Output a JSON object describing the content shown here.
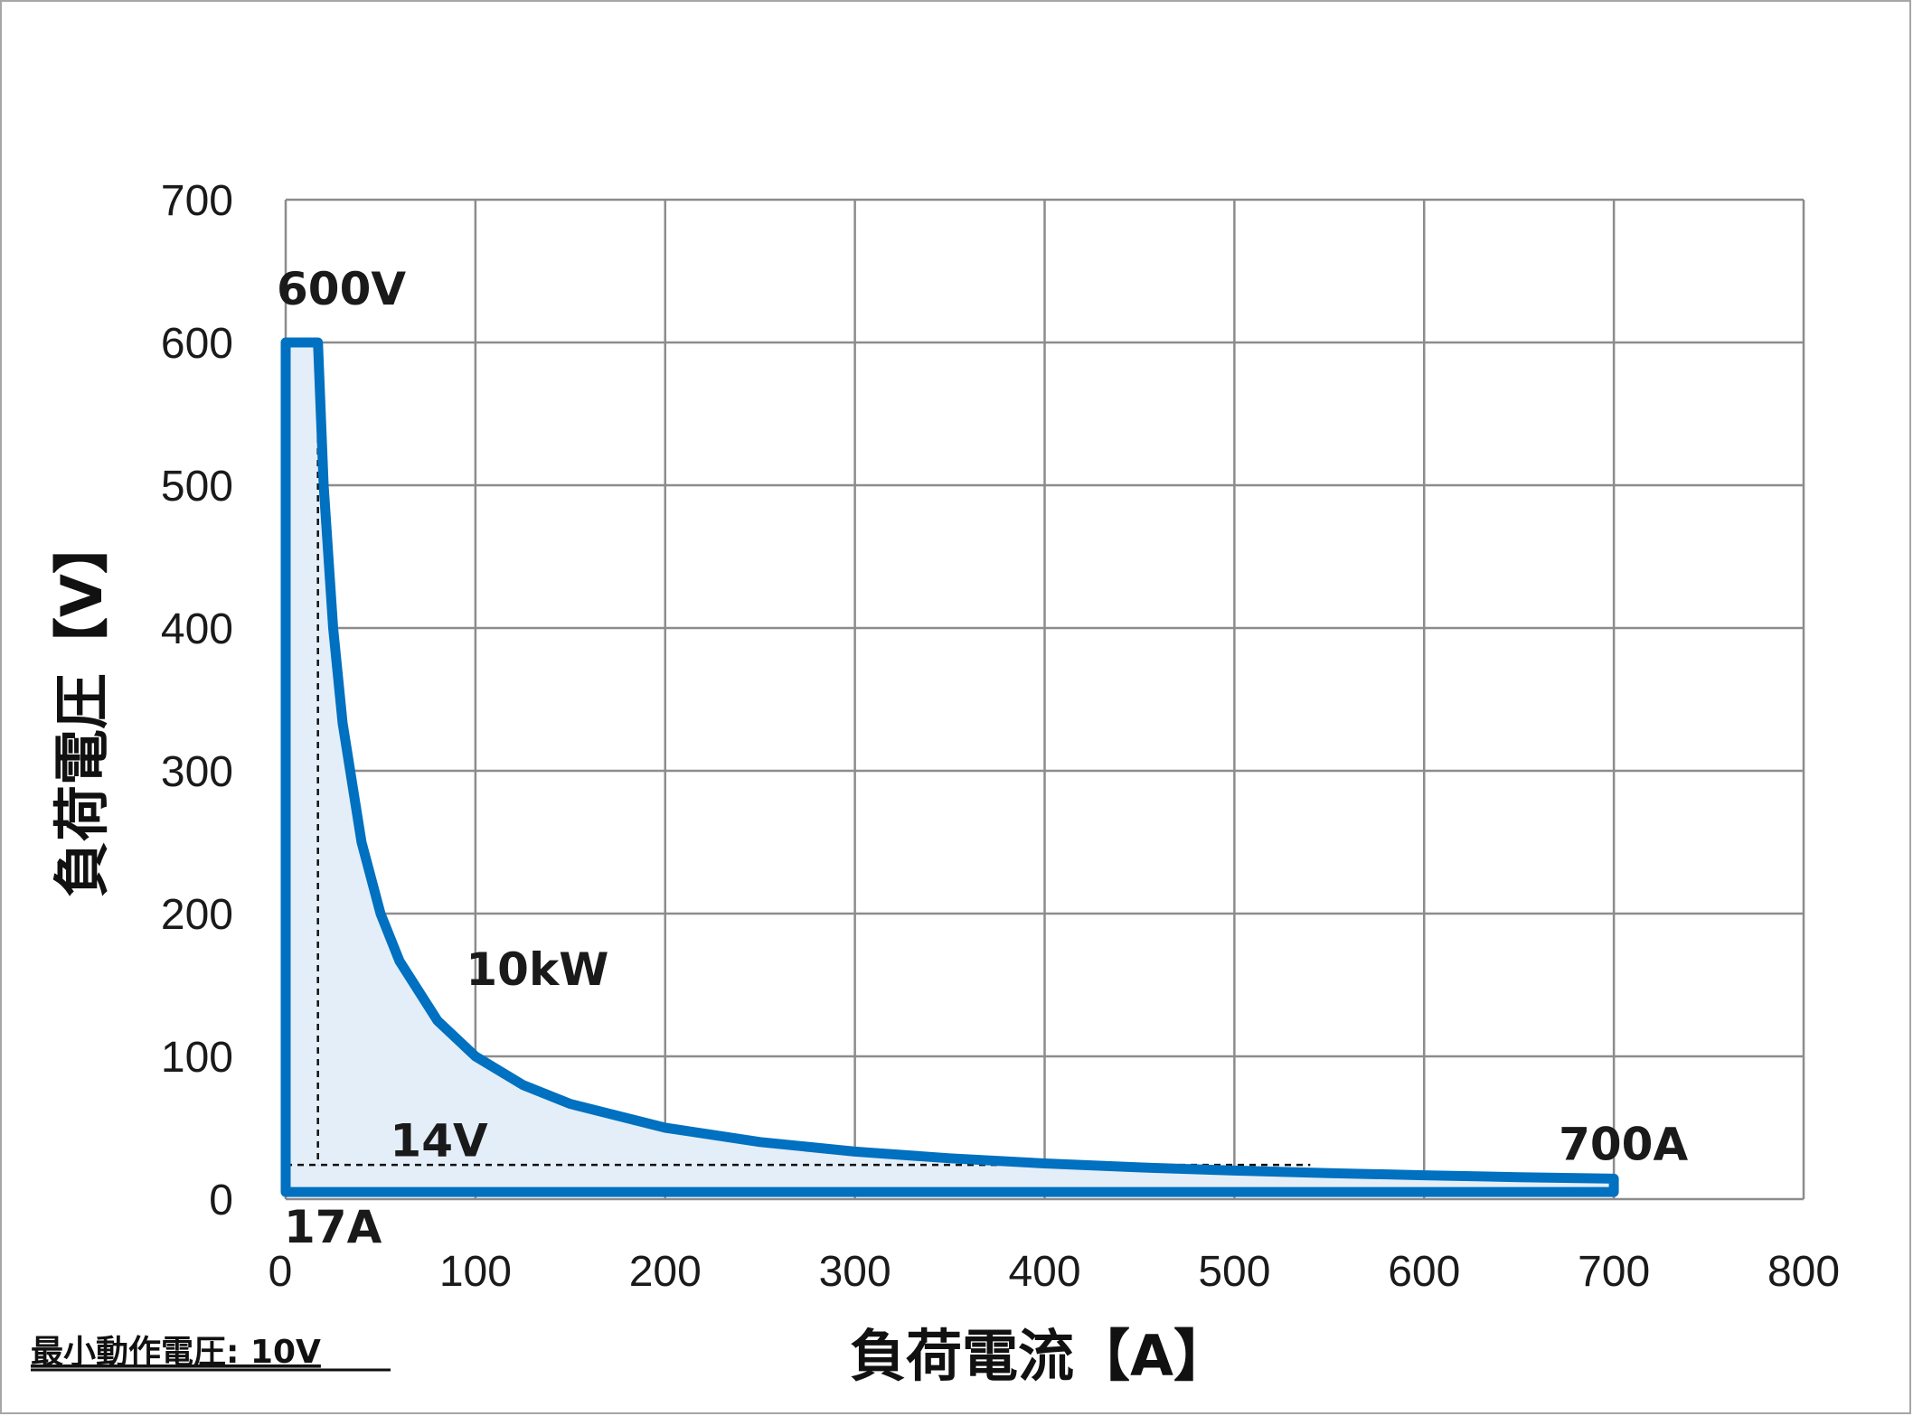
{
  "chart_data": {
    "type": "line",
    "title": "",
    "xlabel": "負荷電流【A】",
    "ylabel": "負荷電圧【V】",
    "xlim": [
      0,
      800
    ],
    "ylim": [
      0,
      700
    ],
    "x_ticks": [
      "0",
      "100",
      "200",
      "300",
      "400",
      "500",
      "600",
      "700",
      "800"
    ],
    "y_ticks": [
      "0",
      "100",
      "200",
      "300",
      "400",
      "500",
      "600",
      "700"
    ],
    "grid": true,
    "series": [
      {
        "name": "",
        "color": "#0070c0",
        "fill": "#e4eef8",
        "points": [
          [
            0,
            600
          ],
          [
            17,
            600
          ],
          [
            20,
            500
          ],
          [
            25,
            400
          ],
          [
            30,
            333.3
          ],
          [
            40,
            250
          ],
          [
            50,
            200
          ],
          [
            60,
            166.7
          ],
          [
            80,
            125
          ],
          [
            100,
            100
          ],
          [
            125,
            80
          ],
          [
            150,
            66.7
          ],
          [
            200,
            50
          ],
          [
            250,
            40
          ],
          [
            300,
            33.3
          ],
          [
            350,
            28.6
          ],
          [
            400,
            25
          ],
          [
            450,
            22.2
          ],
          [
            500,
            20
          ],
          [
            550,
            18.2
          ],
          [
            600,
            16.7
          ],
          [
            650,
            15.4
          ],
          [
            700,
            14.3
          ],
          [
            700,
            5
          ],
          [
            0,
            5
          ]
        ]
      }
    ],
    "guides": [
      {
        "from": [
          17,
          600
        ],
        "to": [
          17,
          24
        ]
      },
      {
        "from": [
          0,
          24
        ],
        "to": [
          540,
          24
        ]
      }
    ],
    "annotations": [
      {
        "text": "600V",
        "x": 0,
        "y": 600
      },
      {
        "text": "10kW",
        "x": 95,
        "y": 150
      },
      {
        "text": "14V",
        "x": 55,
        "y": 25
      },
      {
        "text": "17A",
        "x": 0,
        "y": 0
      },
      {
        "text": "700A",
        "x": 705,
        "y": 20
      }
    ]
  },
  "note": "最小動作電圧: 10V"
}
